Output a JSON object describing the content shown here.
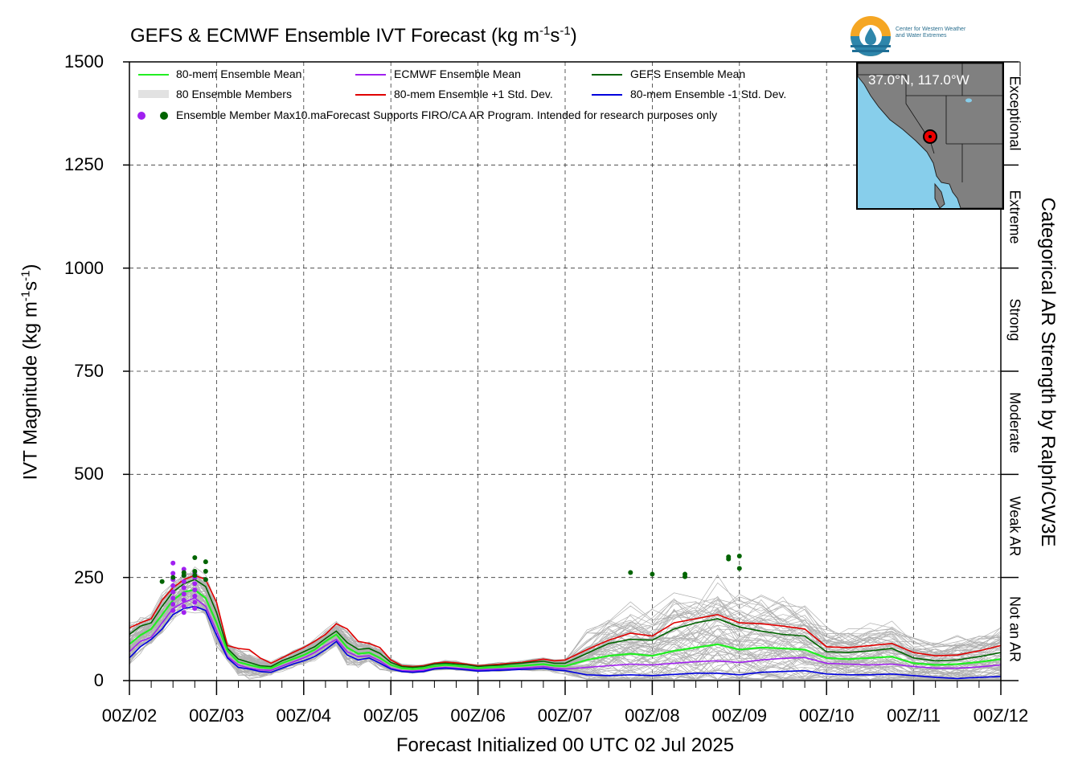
{
  "title": {
    "text": "GEFS & ECMWF Ensemble IVT Forecast (kg m",
    "sup1": "-1",
    "mid": "s",
    "sup2": "-1",
    "end": ")"
  },
  "ylabel": {
    "text": "IVT Magnitude (kg m",
    "sup1": "-1",
    "mid": "s",
    "sup2": "-1",
    "end": ")"
  },
  "xlabel": "Forecast Initialized 00 UTC 02 Jul 2025",
  "right_label": "Categorical AR Strength by Ralph/CW3E",
  "logo": {
    "line1": "Center for Western Weather",
    "line2": "and Water Extremes"
  },
  "inset": {
    "label": "37.0°N, 117.0°W"
  },
  "categories": [
    "Exceptional",
    "Extreme",
    "Strong",
    "Moderate",
    "Weak AR",
    "Not an AR"
  ],
  "legend": {
    "mean80": "80-mem Ensemble Mean",
    "ecmwf": "ECMWF Ensemble Mean",
    "gefs": "GEFS Ensemble Mean",
    "members": "80 Ensemble Members",
    "plus1": "80-mem Ensemble +1 Std. Dev.",
    "minus1": "80-mem Ensemble -1 Std. Dev.",
    "max": "Ensemble Member Max10.maForecast Supports FIRO/CA AR Program. Intended for research purposes only"
  },
  "colors": {
    "mean80": "#22ee22",
    "ecmwf": "#a020f0",
    "gefs": "#006400",
    "members": "#b0b0b0",
    "plus1": "#e00000",
    "minus1": "#0000dd"
  },
  "chart_data": {
    "type": "line",
    "title": "GEFS & ECMWF Ensemble IVT Forecast (kg m-1s-1)",
    "xlabel": "Forecast Initialized 00 UTC 02 Jul 2025",
    "ylabel": "IVT Magnitude (kg m-1s-1)",
    "ylim": [
      0,
      1500
    ],
    "yticks": [
      0,
      250,
      500,
      750,
      1000,
      1250,
      1500
    ],
    "xticks": [
      "00Z/02",
      "00Z/03",
      "00Z/04",
      "00Z/05",
      "00Z/06",
      "00Z/07",
      "00Z/08",
      "00Z/09",
      "00Z/10",
      "00Z/11",
      "00Z/12"
    ],
    "x_days": [
      0,
      0.125,
      0.25,
      0.375,
      0.5,
      0.625,
      0.75,
      0.875,
      1.0,
      1.125,
      1.25,
      1.375,
      1.5,
      1.625,
      1.75,
      1.875,
      2.0,
      2.125,
      2.25,
      2.375,
      2.5,
      2.625,
      2.75,
      2.875,
      3.0,
      3.125,
      3.25,
      3.375,
      3.5,
      3.625,
      3.75,
      3.875,
      4.0,
      4.125,
      4.25,
      4.375,
      4.5,
      4.625,
      4.75,
      4.875,
      5.0,
      5.25,
      5.5,
      5.75,
      6.0,
      6.25,
      6.5,
      6.75,
      7.0,
      7.25,
      7.5,
      7.75,
      8.0,
      8.25,
      8.5,
      8.75,
      9.0,
      9.25,
      9.5,
      9.75,
      10.0
    ],
    "grid": true,
    "legend_position": "top-left",
    "series": [
      {
        "name": "80-mem Ensemble Mean",
        "color": "#22ee22",
        "values": [
          88,
          110,
          125,
          160,
          195,
          215,
          220,
          200,
          140,
          72,
          45,
          38,
          32,
          30,
          42,
          52,
          62,
          75,
          95,
          112,
          80,
          65,
          68,
          55,
          38,
          30,
          28,
          30,
          35,
          38,
          36,
          33,
          30,
          32,
          33,
          35,
          36,
          38,
          40,
          36,
          35,
          50,
          60,
          65,
          60,
          72,
          80,
          88,
          75,
          80,
          78,
          75,
          55,
          52,
          55,
          58,
          42,
          38,
          40,
          45,
          52
        ]
      },
      {
        "name": "ECMWF Ensemble Mean",
        "color": "#a020f0",
        "values": [
          70,
          95,
          105,
          140,
          175,
          190,
          200,
          180,
          120,
          58,
          38,
          30,
          26,
          25,
          35,
          45,
          55,
          68,
          85,
          100,
          70,
          58,
          60,
          48,
          30,
          24,
          23,
          25,
          30,
          32,
          30,
          28,
          26,
          27,
          28,
          29,
          30,
          32,
          34,
          30,
          28,
          32,
          36,
          40,
          38,
          42,
          46,
          48,
          44,
          50,
          54,
          56,
          42,
          40,
          38,
          40,
          34,
          30,
          30,
          33,
          38
        ]
      },
      {
        "name": "GEFS Ensemble Mean",
        "color": "#006400",
        "values": [
          112,
          132,
          140,
          180,
          215,
          235,
          245,
          228,
          165,
          78,
          52,
          44,
          36,
          34,
          48,
          58,
          70,
          82,
          102,
          120,
          92,
          76,
          78,
          66,
          44,
          34,
          32,
          34,
          40,
          42,
          40,
          38,
          34,
          36,
          37,
          40,
          42,
          45,
          47,
          42,
          42,
          66,
          90,
          100,
          98,
          125,
          140,
          150,
          130,
          120,
          112,
          108,
          70,
          68,
          72,
          78,
          55,
          48,
          50,
          58,
          68
        ]
      },
      {
        "name": "80-mem Ensemble +1 Std. Dev.",
        "color": "#e00000",
        "values": [
          128,
          140,
          150,
          195,
          225,
          245,
          255,
          245,
          190,
          85,
          78,
          75,
          55,
          42,
          55,
          68,
          80,
          95,
          112,
          138,
          125,
          95,
          90,
          80,
          50,
          36,
          34,
          36,
          42,
          45,
          43,
          40,
          36,
          38,
          40,
          42,
          44,
          48,
          52,
          48,
          50,
          75,
          98,
          115,
          108,
          140,
          150,
          160,
          140,
          138,
          132,
          125,
          82,
          80,
          85,
          90,
          68,
          60,
          62,
          72,
          85
        ]
      },
      {
        "name": "80-mem Ensemble -1 Std. Dev.",
        "color": "#0000dd",
        "values": [
          55,
          82,
          100,
          125,
          160,
          175,
          180,
          170,
          110,
          55,
          32,
          28,
          22,
          20,
          30,
          40,
          48,
          58,
          75,
          95,
          62,
          50,
          55,
          42,
          28,
          22,
          20,
          22,
          28,
          30,
          28,
          26,
          23,
          24,
          25,
          26,
          27,
          28,
          30,
          26,
          24,
          14,
          12,
          14,
          12,
          15,
          18,
          18,
          14,
          20,
          22,
          24,
          16,
          14,
          14,
          16,
          12,
          8,
          5,
          8,
          10
        ]
      }
    ],
    "ensemble_max_points": [
      {
        "series": "ECMWF",
        "x_day": 0.5,
        "values": [
          170,
          185,
          200,
          215,
          230,
          245,
          260,
          285
        ]
      },
      {
        "series": "ECMWF",
        "x_day": 0.625,
        "values": [
          165,
          180,
          195,
          210,
          225,
          240,
          255,
          270
        ]
      },
      {
        "series": "ECMWF",
        "x_day": 0.75,
        "values": [
          175,
          190,
          205,
          220,
          235,
          250,
          262
        ]
      },
      {
        "series": "GEFS",
        "x_day": 0.375,
        "values": [
          240
        ]
      },
      {
        "series": "GEFS",
        "x_day": 0.5,
        "values": [
          250
        ]
      },
      {
        "series": "GEFS",
        "x_day": 0.625,
        "values": [
          255,
          262
        ]
      },
      {
        "series": "GEFS",
        "x_day": 0.75,
        "values": [
          255,
          265,
          298
        ]
      },
      {
        "series": "GEFS",
        "x_day": 0.875,
        "values": [
          245,
          265,
          288
        ]
      },
      {
        "series": "GEFS",
        "x_day": 5.75,
        "values": [
          262
        ]
      },
      {
        "series": "GEFS",
        "x_day": 6.0,
        "values": [
          258
        ]
      },
      {
        "series": "GEFS",
        "x_day": 6.375,
        "values": [
          252,
          258
        ]
      },
      {
        "series": "GEFS",
        "x_day": 6.875,
        "values": [
          295,
          300
        ]
      },
      {
        "series": "GEFS",
        "x_day": 7.0,
        "values": [
          272,
          302
        ]
      }
    ],
    "ar_categories": [
      {
        "label": "Not an AR",
        "range": [
          0,
          250
        ]
      },
      {
        "label": "Weak AR",
        "range": [
          250,
          500
        ]
      },
      {
        "label": "Moderate",
        "range": [
          500,
          750
        ]
      },
      {
        "label": "Strong",
        "range": [
          750,
          1000
        ]
      },
      {
        "label": "Extreme",
        "range": [
          1000,
          1250
        ]
      },
      {
        "label": "Exceptional",
        "range": [
          1250,
          1500
        ]
      }
    ]
  }
}
